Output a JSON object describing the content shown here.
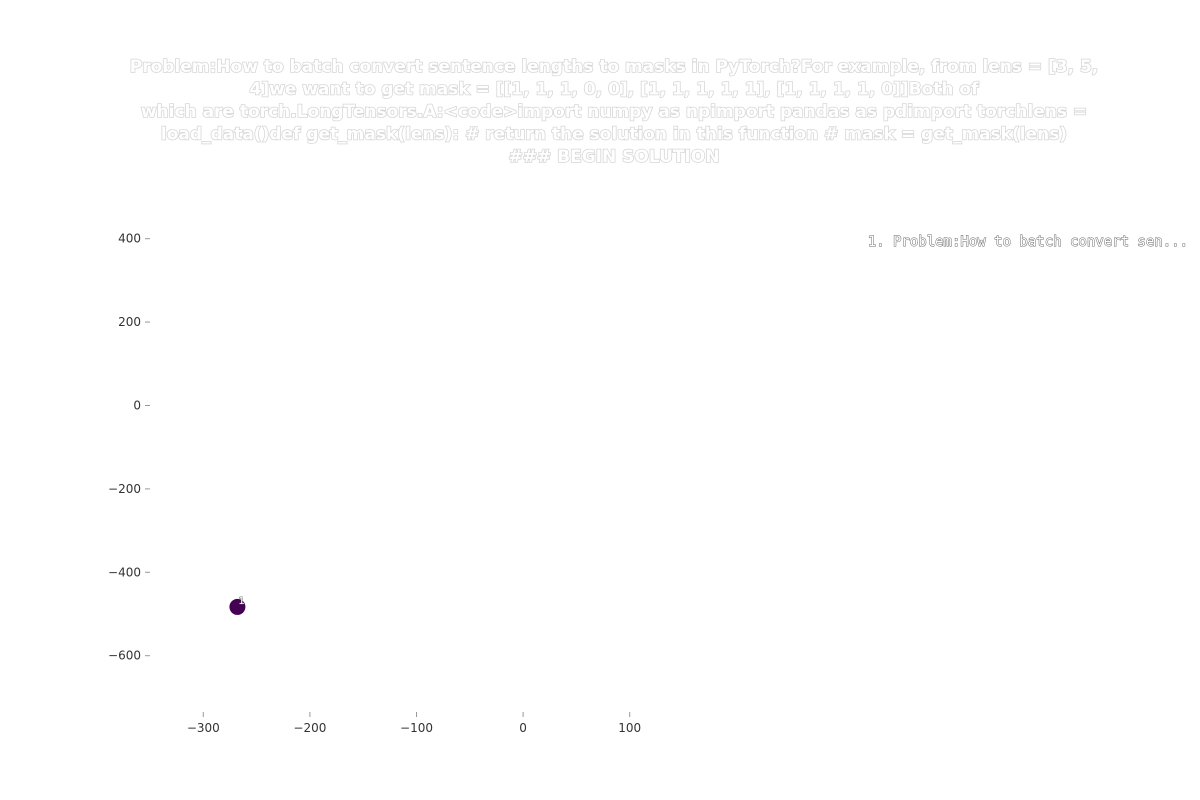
{
  "chart_data": {
    "type": "scatter",
    "title": "Problem:How to batch convert sentence lengths to masks in PyTorch?For example, from lens = [3, 5, 4]we want to get mask = [[1, 1, 1, 0, 0],         [1, 1, 1, 1, 1],         [1, 1, 1, 1, 0]]Both of which are torch.LongTensors.A:<code>import numpy as npimport pandas as pdimport torchlens = load_data()def get_mask(lens):    # return the solution in this function    # mask = get_mask(lens)    ### BEGIN SOLUTION",
    "title_lines": [
      "Problem:How to batch convert sentence lengths to masks in PyTorch?For example, from lens = [3, 5,",
      "4]we want to get mask = [[1, 1, 1, 0, 0],         [1, 1, 1, 1, 1],         [1, 1, 1, 1, 0]]Both of",
      "which are torch.LongTensors.A:<code>import numpy as npimport pandas as pdimport torchlens =",
      "load_data()def get_mask(lens):    # return the solution in this function    # mask = get_mask(lens)",
      "### BEGIN SOLUTION"
    ],
    "xlim": [
      -350,
      180
    ],
    "ylim": [
      -735,
      440
    ],
    "x_ticks": [
      -300,
      -200,
      -100,
      0,
      100
    ],
    "x_tick_labels": [
      "−300",
      "−200",
      "−100",
      "0",
      "100"
    ],
    "y_ticks": [
      400,
      200,
      0,
      -200,
      -400,
      -600
    ],
    "y_tick_labels": [
      "400",
      "200",
      "0",
      "−200",
      "−400",
      "−600"
    ],
    "grid": false,
    "legend_position": "top-right",
    "series": [
      {
        "name": "1. Problem:How to batch convert sen...",
        "color": "#440154",
        "points": [
          {
            "x": -268,
            "y": -483,
            "label": "1"
          }
        ]
      }
    ]
  }
}
